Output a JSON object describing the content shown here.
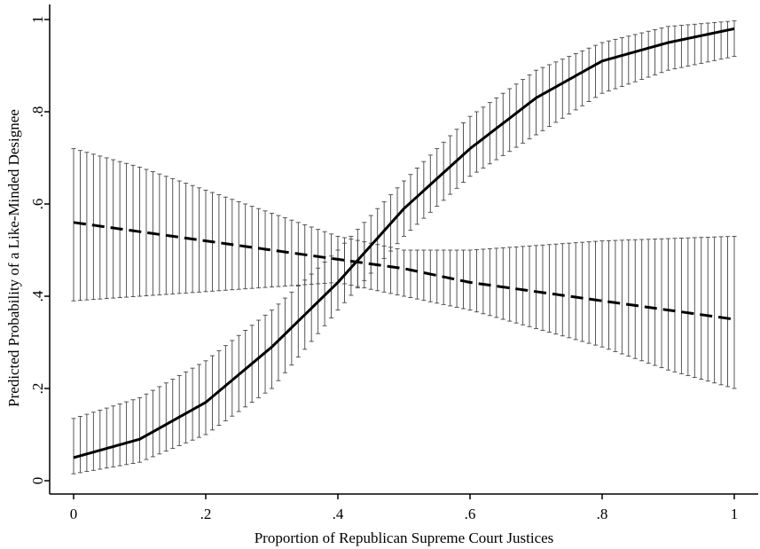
{
  "chart_data": {
    "type": "line",
    "title": "",
    "xlabel": "Proportion of Republican Supreme Court Justices",
    "ylabel": "Predicted Probability of a Like-Minded Designee",
    "xlim": [
      0,
      1
    ],
    "ylim": [
      0,
      1
    ],
    "grid": false,
    "legend": "none",
    "x_ticks": [
      {
        "value": 0,
        "label": "0"
      },
      {
        "value": 0.2,
        "label": ".2"
      },
      {
        "value": 0.4,
        "label": ".4"
      },
      {
        "value": 0.6,
        "label": ".6"
      },
      {
        "value": 0.8,
        "label": ".8"
      },
      {
        "value": 1,
        "label": "1"
      }
    ],
    "y_ticks": [
      {
        "value": 0,
        "label": "0"
      },
      {
        "value": 0.2,
        "label": ".2"
      },
      {
        "value": 0.4,
        "label": ".4"
      },
      {
        "value": 0.6,
        "label": ".6"
      },
      {
        "value": 0.8,
        "label": ".8"
      },
      {
        "value": 1,
        "label": "1"
      }
    ],
    "series": [
      {
        "line_style": "solid",
        "color": "#000000",
        "x": [
          0,
          0.1,
          0.2,
          0.3,
          0.4,
          0.5,
          0.6,
          0.7,
          0.8,
          0.9,
          1.0
        ],
        "y": [
          0.05,
          0.09,
          0.17,
          0.29,
          0.43,
          0.59,
          0.72,
          0.83,
          0.91,
          0.95,
          0.98
        ],
        "ci_lower": [
          0.015,
          0.04,
          0.1,
          0.2,
          0.37,
          0.53,
          0.66,
          0.75,
          0.84,
          0.89,
          0.92
        ],
        "ci_upper": [
          0.135,
          0.18,
          0.26,
          0.37,
          0.5,
          0.65,
          0.79,
          0.89,
          0.95,
          0.985,
          0.997
        ]
      },
      {
        "line_style": "dashed",
        "color": "#000000",
        "x": [
          0,
          0.1,
          0.2,
          0.3,
          0.4,
          0.5,
          0.6,
          0.7,
          0.8,
          0.9,
          1.0
        ],
        "y": [
          0.56,
          0.54,
          0.52,
          0.5,
          0.48,
          0.46,
          0.43,
          0.41,
          0.39,
          0.37,
          0.35
        ],
        "ci_lower": [
          0.39,
          0.4,
          0.41,
          0.42,
          0.43,
          0.4,
          0.37,
          0.33,
          0.29,
          0.24,
          0.2
        ],
        "ci_upper": [
          0.72,
          0.68,
          0.63,
          0.58,
          0.53,
          0.5,
          0.5,
          0.51,
          0.52,
          0.525,
          0.53
        ]
      }
    ]
  }
}
